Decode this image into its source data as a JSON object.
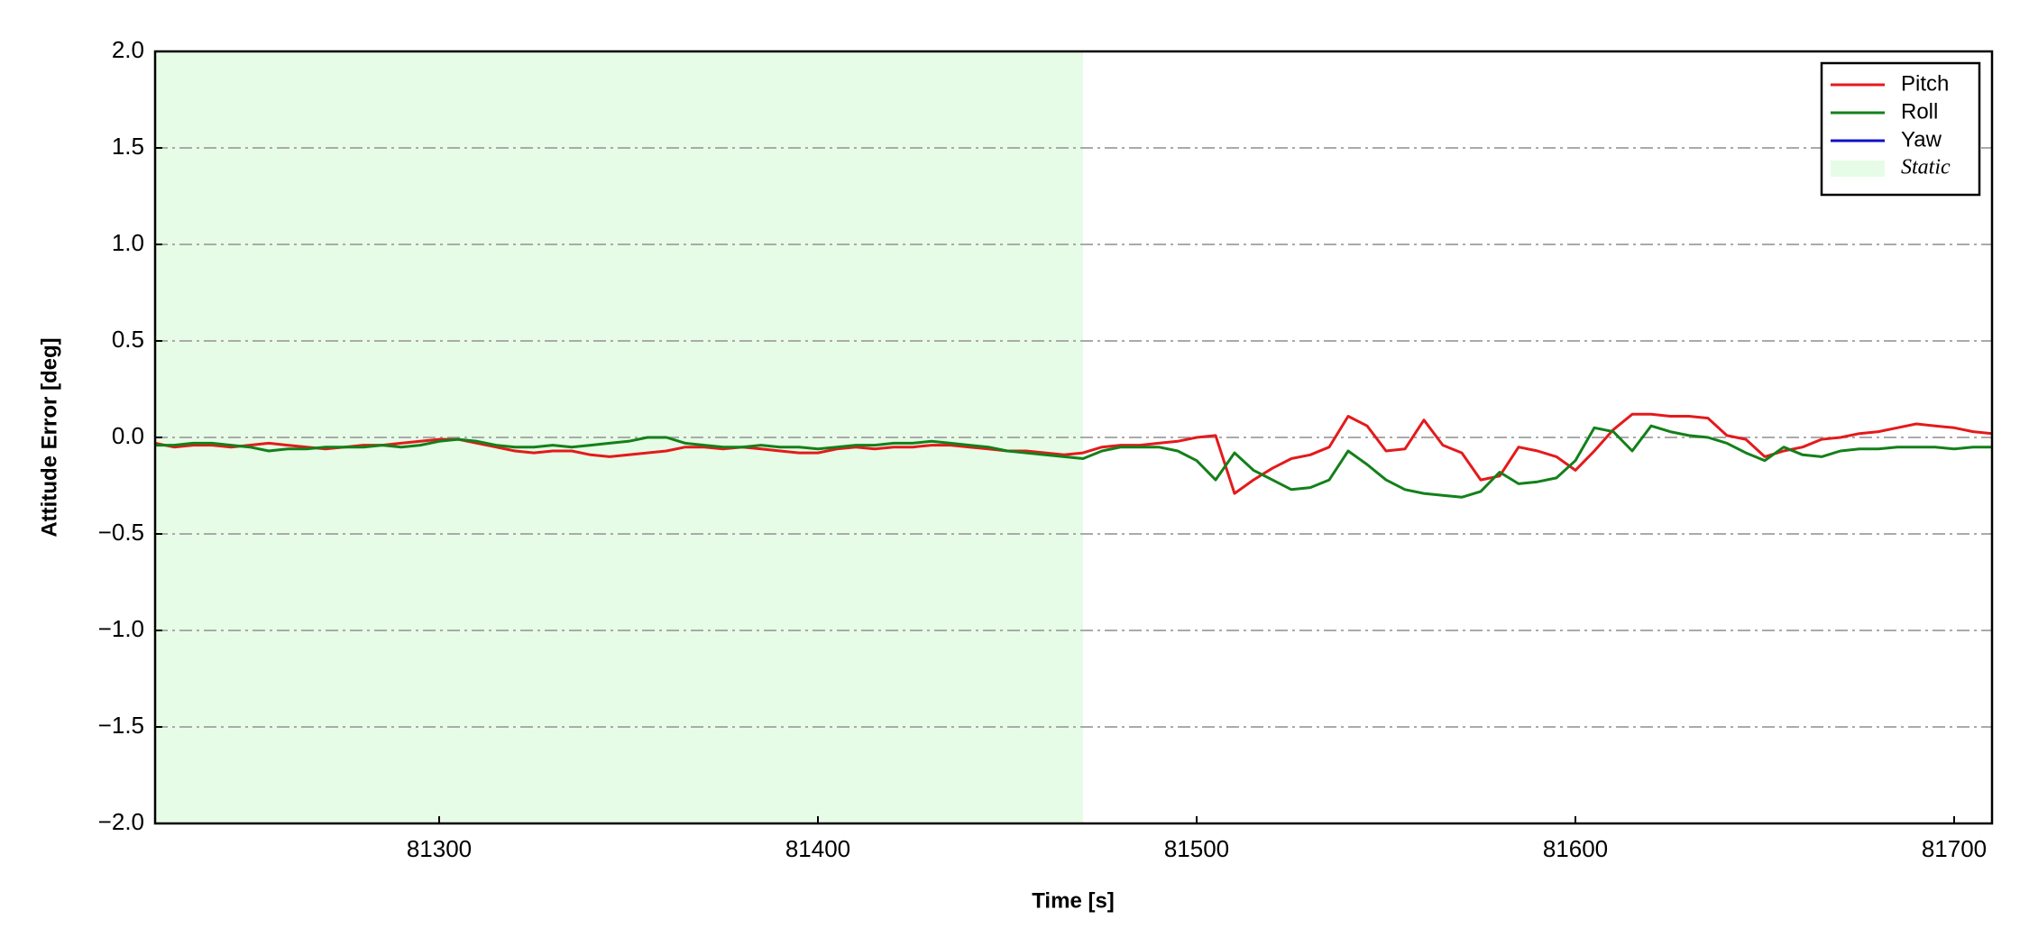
{
  "chart_data": {
    "type": "line",
    "xlabel": "Time [s]",
    "ylabel": "Attitude Error [deg]",
    "x": [
      81225,
      81230,
      81235,
      81240,
      81245,
      81250,
      81255,
      81260,
      81265,
      81270,
      81275,
      81280,
      81285,
      81290,
      81295,
      81300,
      81305,
      81310,
      81315,
      81320,
      81325,
      81330,
      81335,
      81340,
      81345,
      81350,
      81355,
      81360,
      81365,
      81370,
      81375,
      81380,
      81385,
      81390,
      81395,
      81400,
      81405,
      81410,
      81415,
      81420,
      81425,
      81430,
      81435,
      81440,
      81445,
      81450,
      81455,
      81460,
      81465,
      81470,
      81475,
      81480,
      81485,
      81490,
      81495,
      81500,
      81505,
      81510,
      81515,
      81520,
      81525,
      81530,
      81535,
      81540,
      81545,
      81550,
      81555,
      81560,
      81565,
      81570,
      81575,
      81580,
      81585,
      81590,
      81595,
      81600,
      81605,
      81610,
      81615,
      81620,
      81625,
      81630,
      81635,
      81640,
      81645,
      81650,
      81655,
      81660,
      81665,
      81670,
      81675,
      81680,
      81685,
      81690,
      81695,
      81700,
      81705,
      81710
    ],
    "series": [
      {
        "name": "Pitch",
        "color": "#e41a1c",
        "values": [
          -0.03,
          -0.05,
          -0.04,
          -0.04,
          -0.05,
          -0.04,
          -0.03,
          -0.04,
          -0.05,
          -0.06,
          -0.05,
          -0.04,
          -0.04,
          -0.03,
          -0.02,
          -0.01,
          -0.01,
          -0.03,
          -0.05,
          -0.07,
          -0.08,
          -0.07,
          -0.07,
          -0.09,
          -0.1,
          -0.09,
          -0.08,
          -0.07,
          -0.05,
          -0.05,
          -0.06,
          -0.05,
          -0.06,
          -0.07,
          -0.08,
          -0.08,
          -0.06,
          -0.05,
          -0.06,
          -0.05,
          -0.05,
          -0.04,
          -0.04,
          -0.05,
          -0.06,
          -0.07,
          -0.07,
          -0.08,
          -0.09,
          -0.08,
          -0.05,
          -0.04,
          -0.04,
          -0.03,
          -0.02,
          0.0,
          0.01,
          -0.29,
          -0.22,
          -0.16,
          -0.11,
          -0.09,
          -0.05,
          0.11,
          0.06,
          -0.07,
          -0.06,
          0.09,
          -0.04,
          -0.08,
          -0.22,
          -0.2,
          -0.05,
          -0.07,
          -0.1,
          -0.17,
          -0.07,
          0.04,
          0.12,
          0.12,
          0.11,
          0.11,
          0.1,
          0.01,
          -0.01,
          -0.1,
          -0.07,
          -0.05,
          -0.01,
          0.0,
          0.02,
          0.03,
          0.05,
          0.07,
          0.06,
          0.05,
          0.03,
          0.02
        ]
      },
      {
        "name": "Roll",
        "color": "#13801a",
        "values": [
          -0.04,
          -0.04,
          -0.03,
          -0.03,
          -0.04,
          -0.05,
          -0.07,
          -0.06,
          -0.06,
          -0.05,
          -0.05,
          -0.05,
          -0.04,
          -0.05,
          -0.04,
          -0.02,
          -0.01,
          -0.02,
          -0.04,
          -0.05,
          -0.05,
          -0.04,
          -0.05,
          -0.04,
          -0.03,
          -0.02,
          0.0,
          0.0,
          -0.03,
          -0.04,
          -0.05,
          -0.05,
          -0.04,
          -0.05,
          -0.05,
          -0.06,
          -0.05,
          -0.04,
          -0.04,
          -0.03,
          -0.03,
          -0.02,
          -0.03,
          -0.04,
          -0.05,
          -0.07,
          -0.08,
          -0.09,
          -0.1,
          -0.11,
          -0.07,
          -0.05,
          -0.05,
          -0.05,
          -0.07,
          -0.12,
          -0.22,
          -0.08,
          -0.17,
          -0.22,
          -0.27,
          -0.26,
          -0.22,
          -0.07,
          -0.14,
          -0.22,
          -0.27,
          -0.29,
          -0.3,
          -0.31,
          -0.28,
          -0.18,
          -0.24,
          -0.23,
          -0.21,
          -0.12,
          0.05,
          0.03,
          -0.07,
          0.06,
          0.03,
          0.01,
          0.0,
          -0.03,
          -0.08,
          -0.12,
          -0.05,
          -0.09,
          -0.1,
          -0.07,
          -0.06,
          -0.06,
          -0.05,
          -0.05,
          -0.05,
          -0.06,
          -0.05,
          -0.05
        ]
      },
      {
        "name": "Yaw",
        "color": "#1010c8",
        "values": [
          null,
          null,
          null,
          null,
          null,
          null,
          null,
          null,
          null,
          null,
          null,
          null,
          null,
          null,
          null,
          null,
          null,
          null,
          null,
          null,
          null,
          null,
          null,
          null,
          null,
          null,
          null,
          null,
          null,
          null,
          null,
          null,
          null,
          null,
          null,
          null,
          null,
          null,
          null,
          null,
          null,
          null,
          null,
          null,
          null,
          null,
          null,
          null,
          null,
          null,
          null,
          null,
          null,
          null,
          null,
          null,
          null,
          null,
          null,
          null,
          null,
          null,
          null,
          null,
          null,
          null,
          null,
          null,
          null,
          null,
          null,
          null,
          null,
          null,
          null,
          null,
          null,
          null,
          null,
          null,
          null,
          null,
          null,
          null,
          null,
          null,
          null,
          null,
          null,
          null,
          null,
          null,
          null,
          null,
          null,
          null,
          null,
          null
        ]
      }
    ],
    "spans": [
      {
        "name": "Static",
        "xlim": [
          81225,
          81470
        ],
        "color": "#e6fce6"
      }
    ],
    "xlim": [
      81225,
      81710
    ],
    "xticks": [
      81300,
      81400,
      81500,
      81600,
      81700
    ],
    "ylim": [
      -2,
      2
    ],
    "yticks": [
      {
        "value": -2,
        "label": "−2.0"
      },
      {
        "value": -1.5,
        "label": "−1.5"
      },
      {
        "value": -1,
        "label": "−1.0"
      },
      {
        "value": -0.5,
        "label": "−0.5"
      },
      {
        "value": 0,
        "label": "0.0"
      },
      {
        "value": 0.5,
        "label": "0.5"
      },
      {
        "value": 1,
        "label": "1.0"
      },
      {
        "value": 1.5,
        "label": "1.5"
      },
      {
        "value": 2,
        "label": "2.0"
      }
    ],
    "grid": true,
    "legend": "upper right"
  }
}
